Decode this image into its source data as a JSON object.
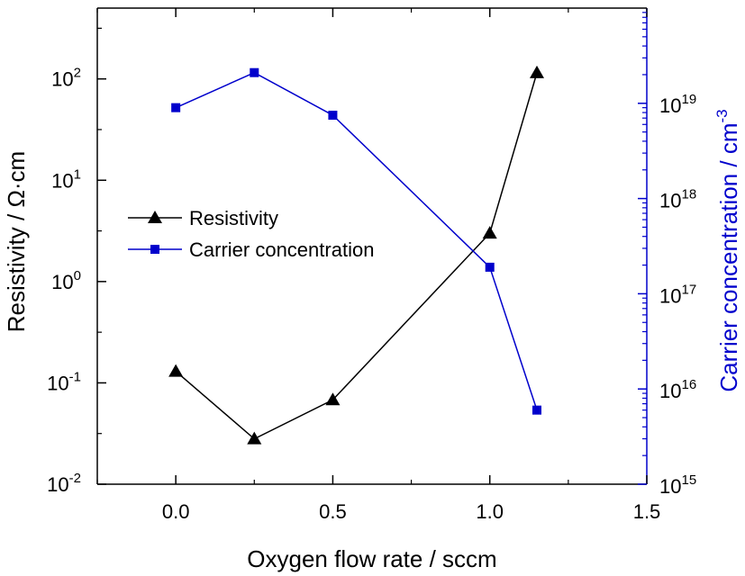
{
  "chart_data": {
    "type": "line",
    "xlabel": "Oxygen flow rate / sccm",
    "xlim": [
      -0.25,
      1.5
    ],
    "xticks": [
      0.0,
      0.5,
      1.0,
      1.5
    ],
    "xtick_labels": [
      "0.0",
      "0.5",
      "1.0",
      "1.5"
    ],
    "left_axis": {
      "label": "Resistivity / Ω·cm",
      "scale": "log",
      "ylim": [
        0.01,
        500
      ],
      "ticks": [
        0.01,
        0.1,
        1,
        10,
        100
      ],
      "tick_mantissa": [
        "10",
        "10",
        "10",
        "10",
        "10"
      ],
      "tick_exponents": [
        "-2",
        "-1",
        "0",
        "1",
        "2"
      ],
      "color": "#000000"
    },
    "right_axis": {
      "label": "Carrier concentration / cm",
      "label_exponent": "-3",
      "scale": "log",
      "ylim": [
        1000000000000000.0,
        1e+20
      ],
      "ticks": [
        1000000000000000.0,
        1e+16,
        1e+17,
        1e+18,
        1e+19
      ],
      "tick_mantissa": [
        "10",
        "10",
        "10",
        "10",
        "10"
      ],
      "tick_exponents": [
        "15",
        "16",
        "17",
        "18",
        "19"
      ],
      "color": "#0000cc"
    },
    "series": [
      {
        "name": "Resistivity",
        "axis": "left",
        "marker": "triangle",
        "color": "#000000",
        "x": [
          0.0,
          0.25,
          0.5,
          1.0,
          1.15
        ],
        "y": [
          0.13,
          0.028,
          0.068,
          3.0,
          115
        ]
      },
      {
        "name": "Carrier concentration",
        "axis": "right",
        "marker": "square",
        "color": "#0000cc",
        "x": [
          0.0,
          0.25,
          0.5,
          1.0,
          1.15
        ],
        "y": [
          9e+18,
          2.1e+19,
          7.5e+18,
          1.9e+17,
          6000000000000000.0
        ]
      }
    ],
    "legend_position": "center-left"
  }
}
